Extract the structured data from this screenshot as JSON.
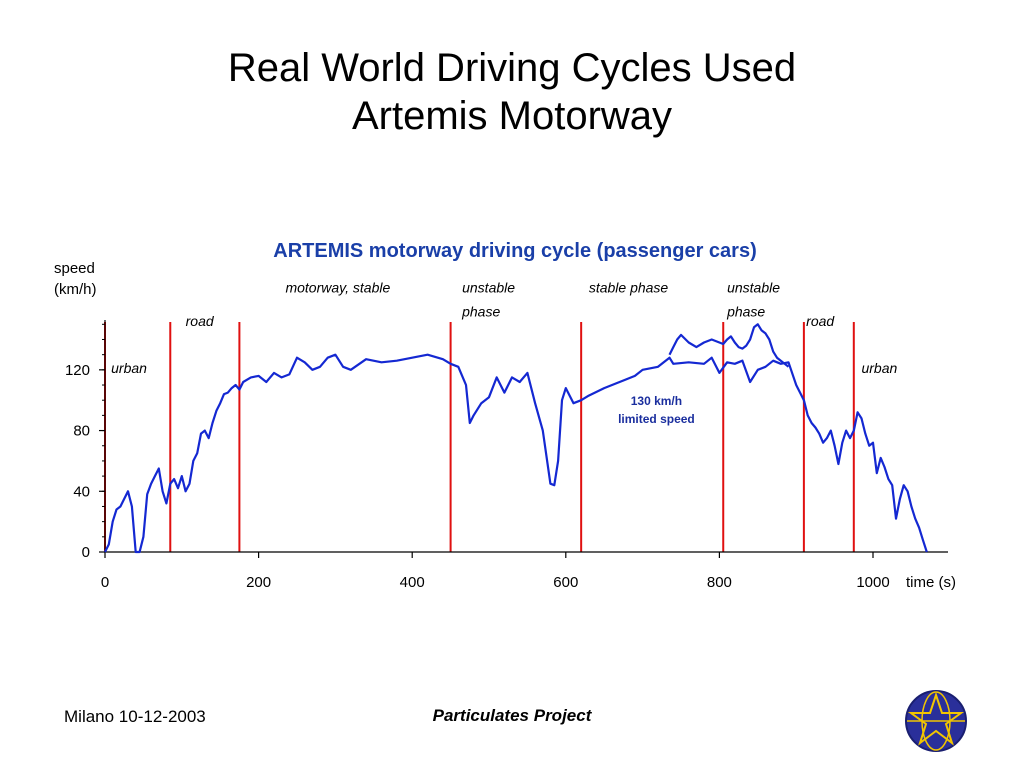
{
  "slide": {
    "title_line1": "Real World Driving Cycles Used",
    "title_line2": "Artemis Motorway",
    "footer_left": "Milano 10-12-2003",
    "footer_center": "Particulates Project",
    "logo_icon": "globe-star-logo-icon"
  },
  "colors": {
    "series": "#1428d2",
    "phase_lines": "#e01010",
    "chart_title": "#1a3fa8",
    "annotation": "#1a2e9e",
    "logo_bg": "#2a2f9a",
    "logo_lines": "#f2c500"
  },
  "chart_data": {
    "type": "line",
    "title": "ARTEMIS motorway driving cycle (passenger cars)",
    "ylabel_line1": "speed",
    "ylabel_line2": "(km/h)",
    "xlabel": "time (s)",
    "xlim": [
      0,
      1100
    ],
    "ylim": [
      0,
      150
    ],
    "xticks": [
      0,
      200,
      400,
      600,
      800,
      1000
    ],
    "yticks": [
      0,
      40,
      80,
      120
    ],
    "grid": false,
    "phase_boundaries": [
      0,
      85,
      175,
      450,
      620,
      805,
      910,
      975
    ],
    "phase_labels": [
      {
        "text": "urban",
        "x": 8,
        "y": 118
      },
      {
        "text": "road",
        "x": 105,
        "y": 149
      },
      {
        "text": "motorway, stable",
        "x": 235,
        "y": 171
      },
      {
        "text": "unstable",
        "x": 465,
        "y": 171
      },
      {
        "text": "phase",
        "x": 465,
        "y": 155
      },
      {
        "text": "stable phase",
        "x": 630,
        "y": 171
      },
      {
        "text": "unstable",
        "x": 810,
        "y": 171
      },
      {
        "text": "phase",
        "x": 810,
        "y": 155
      },
      {
        "text": "road",
        "x": 913,
        "y": 149
      },
      {
        "text": "urban",
        "x": 985,
        "y": 118
      }
    ],
    "annotation": {
      "line1": "130 km/h",
      "line2": "limited speed",
      "x": 718,
      "y": 97
    },
    "series": [
      {
        "x": [
          0,
          5,
          10,
          15,
          20,
          25,
          30,
          35,
          40,
          45,
          50,
          55,
          60,
          65,
          70,
          75,
          80,
          85,
          90,
          95,
          100,
          105,
          110,
          115,
          120,
          125,
          130,
          135,
          140,
          145,
          150,
          155,
          160,
          165,
          170,
          175,
          180,
          190,
          200,
          210,
          220,
          230,
          240,
          250,
          260,
          270,
          280,
          290,
          300,
          310,
          320,
          340,
          360,
          380,
          400,
          420,
          440,
          450,
          460,
          470,
          475,
          480,
          490,
          500,
          510,
          520,
          530,
          540,
          550,
          560,
          570,
          580,
          585,
          590,
          595,
          600,
          610,
          620,
          630,
          650,
          670,
          690,
          700,
          720,
          735,
          740,
          760,
          780,
          790,
          800,
          810,
          820,
          830,
          840,
          850,
          860,
          870,
          880,
          890,
          900,
          910,
          915,
          920,
          925,
          930,
          935,
          940,
          945,
          950,
          955,
          960,
          965,
          970,
          975,
          980,
          985,
          990,
          995,
          1000,
          1005,
          1010,
          1015,
          1020,
          1025,
          1030,
          1035,
          1040,
          1045,
          1050,
          1055,
          1060,
          1065,
          1070
        ],
        "values": [
          0,
          5,
          20,
          28,
          30,
          35,
          40,
          30,
          0,
          0,
          10,
          38,
          45,
          50,
          55,
          40,
          32,
          45,
          48,
          42,
          50,
          40,
          45,
          60,
          65,
          78,
          80,
          75,
          85,
          93,
          98,
          104,
          105,
          108,
          110,
          107,
          112,
          115,
          116,
          112,
          118,
          115,
          117,
          128,
          125,
          120,
          122,
          128,
          130,
          122,
          120,
          127,
          125,
          126,
          128,
          130,
          127,
          124,
          122,
          110,
          85,
          90,
          98,
          102,
          115,
          105,
          115,
          112,
          118,
          98,
          80,
          45,
          44,
          60,
          100,
          108,
          98,
          100,
          103,
          108,
          112,
          116,
          120,
          122,
          128,
          124,
          125,
          124,
          128,
          118,
          125,
          124,
          126,
          112,
          120,
          122,
          126,
          124,
          125,
          110,
          100,
          90,
          85,
          82,
          78,
          72,
          75,
          80,
          70,
          58,
          72,
          80,
          75,
          80,
          92,
          88,
          78,
          70,
          72,
          52,
          62,
          56,
          48,
          44,
          22,
          35,
          44,
          40,
          30,
          22,
          16,
          8,
          0
        ]
      },
      {
        "x": [
          735,
          740,
          745,
          750,
          760,
          770,
          780,
          790,
          800,
          805,
          810,
          815,
          820,
          825,
          830,
          835,
          840,
          845,
          850,
          855,
          860,
          865,
          870,
          875,
          880,
          885,
          890
        ],
        "values": [
          130,
          135,
          140,
          143,
          138,
          135,
          138,
          140,
          138,
          137,
          140,
          142,
          138,
          135,
          134,
          136,
          140,
          148,
          150,
          146,
          144,
          140,
          132,
          128,
          126,
          124,
          122
        ]
      }
    ]
  }
}
